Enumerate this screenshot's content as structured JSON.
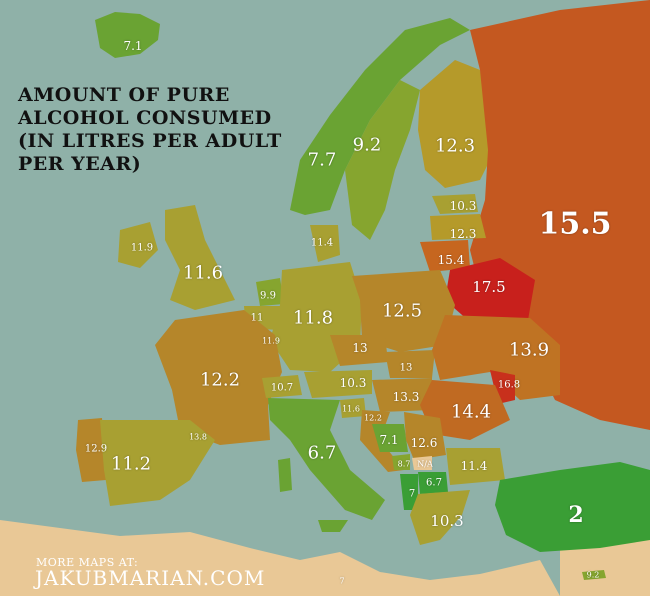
{
  "title_lines": [
    "Amount of pure",
    "alcohol consumed",
    "(in litres per adult",
    "per year)"
  ],
  "footer": {
    "small": "More maps at:",
    "big": "jakubmarian.com"
  },
  "colors": {
    "sea": "#8fb1a8",
    "land_outside": "#e9c896",
    "low": "#3a9e35",
    "mid": "#a8a032",
    "high": "#c8571c",
    "highest": "#c8201c"
  },
  "countries": [
    {
      "name": "iceland",
      "value": "7.1"
    },
    {
      "name": "norway",
      "value": "7.7"
    },
    {
      "name": "sweden",
      "value": "9.2"
    },
    {
      "name": "finland",
      "value": "12.3"
    },
    {
      "name": "estonia",
      "value": "10.3"
    },
    {
      "name": "latvia",
      "value": "12.3"
    },
    {
      "name": "lithuania",
      "value": "15.4"
    },
    {
      "name": "russia",
      "value": "15.5"
    },
    {
      "name": "belarus",
      "value": "17.5"
    },
    {
      "name": "ireland",
      "value": "11.9"
    },
    {
      "name": "united-kingdom",
      "value": "11.6"
    },
    {
      "name": "denmark",
      "value": "11.4"
    },
    {
      "name": "netherlands",
      "value": "9.9"
    },
    {
      "name": "belgium",
      "value": "11"
    },
    {
      "name": "luxembourg",
      "value": "11.9"
    },
    {
      "name": "germany",
      "value": "11.8"
    },
    {
      "name": "poland",
      "value": "12.5"
    },
    {
      "name": "czech-republic",
      "value": "13"
    },
    {
      "name": "slovakia",
      "value": "13"
    },
    {
      "name": "ukraine",
      "value": "13.9"
    },
    {
      "name": "moldova",
      "value": "16.8"
    },
    {
      "name": "france",
      "value": "12.2"
    },
    {
      "name": "switzerland",
      "value": "10.7"
    },
    {
      "name": "austria",
      "value": "10.3"
    },
    {
      "name": "hungary",
      "value": "13.3"
    },
    {
      "name": "romania",
      "value": "14.4"
    },
    {
      "name": "slovenia",
      "value": "11.6"
    },
    {
      "name": "croatia",
      "value": "12.2"
    },
    {
      "name": "bosnia",
      "value": "7.1"
    },
    {
      "name": "serbia",
      "value": "12.6"
    },
    {
      "name": "montenegro",
      "value": "8.7"
    },
    {
      "name": "kosovo",
      "value": "N/A"
    },
    {
      "name": "bulgaria",
      "value": "11.4"
    },
    {
      "name": "macedonia",
      "value": "6.7"
    },
    {
      "name": "albania",
      "value": "7"
    },
    {
      "name": "greece",
      "value": "10.3"
    },
    {
      "name": "turkey",
      "value": "2"
    },
    {
      "name": "portugal",
      "value": "12.9"
    },
    {
      "name": "spain",
      "value": "11.2"
    },
    {
      "name": "andorra",
      "value": "13.8"
    },
    {
      "name": "italy",
      "value": "6.7"
    },
    {
      "name": "malta",
      "value": "7"
    },
    {
      "name": "cyprus",
      "value": "9.2"
    }
  ]
}
